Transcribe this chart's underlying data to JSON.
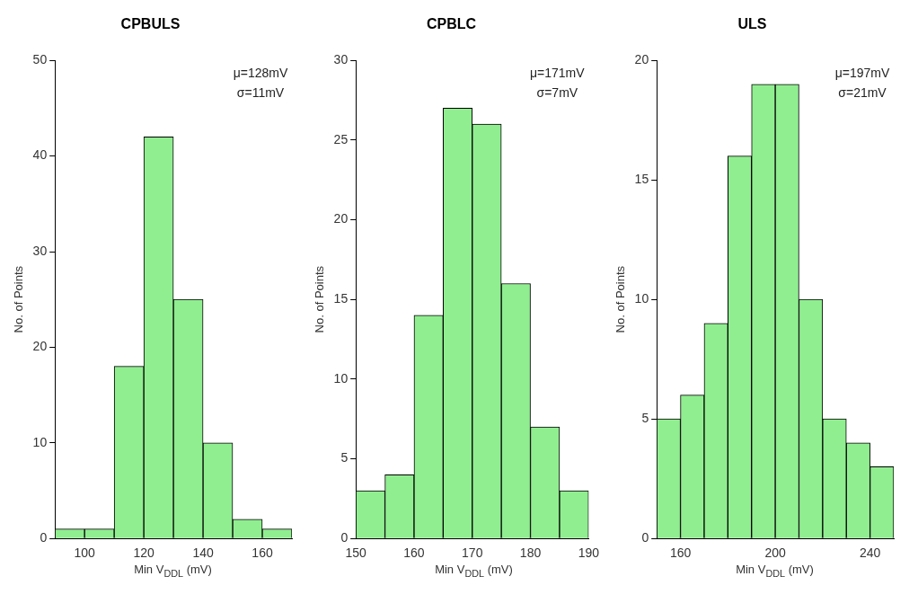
{
  "chart_data": [
    {
      "type": "histogram",
      "title": "CPBULS",
      "xlabel": "Min V$_{DDL}$ (mV)",
      "ylabel": "No. of Points",
      "annotations": [
        "μ=128mV",
        "σ=11mV"
      ],
      "color": "#90ee90",
      "bins": [
        90,
        100,
        110,
        120,
        130,
        140,
        150,
        160,
        170
      ],
      "values": [
        1,
        1,
        18,
        42,
        25,
        10,
        2,
        1
      ],
      "xlim": [
        90,
        170
      ],
      "xticks": [
        100,
        120,
        140,
        160
      ],
      "ylim": [
        0,
        50
      ],
      "yticks": [
        0,
        10,
        20,
        30,
        40,
        50
      ]
    },
    {
      "type": "histogram",
      "title": "CPBLC",
      "xlabel": "Min V$_{DDL}$ (mV)",
      "ylabel": "No. of Points",
      "annotations": [
        "μ=171mV",
        "σ=7mV"
      ],
      "color": "#90ee90",
      "bins": [
        150,
        155,
        160,
        165,
        170,
        175,
        180,
        185,
        190
      ],
      "values": [
        3,
        4,
        14,
        27,
        26,
        16,
        7,
        3
      ],
      "xlim": [
        150,
        190
      ],
      "xticks": [
        150,
        160,
        170,
        180,
        190
      ],
      "ylim": [
        0,
        30
      ],
      "yticks": [
        0,
        5,
        10,
        15,
        20,
        25,
        30
      ]
    },
    {
      "type": "histogram",
      "title": "ULS",
      "xlabel": "Min V$_{DDL}$ (mV)",
      "ylabel": "No. of Points",
      "annotations": [
        "μ=197mV",
        "σ=21mV"
      ],
      "color": "#90ee90",
      "bins": [
        150,
        160,
        170,
        180,
        190,
        200,
        210,
        220,
        230,
        240,
        250
      ],
      "values": [
        5,
        6,
        9,
        16,
        19,
        19,
        10,
        5,
        4,
        3
      ],
      "xlim": [
        150,
        250
      ],
      "xticks": [
        160,
        200,
        240
      ],
      "ylim": [
        0,
        20
      ],
      "yticks": [
        0,
        5,
        10,
        15,
        20
      ]
    }
  ]
}
